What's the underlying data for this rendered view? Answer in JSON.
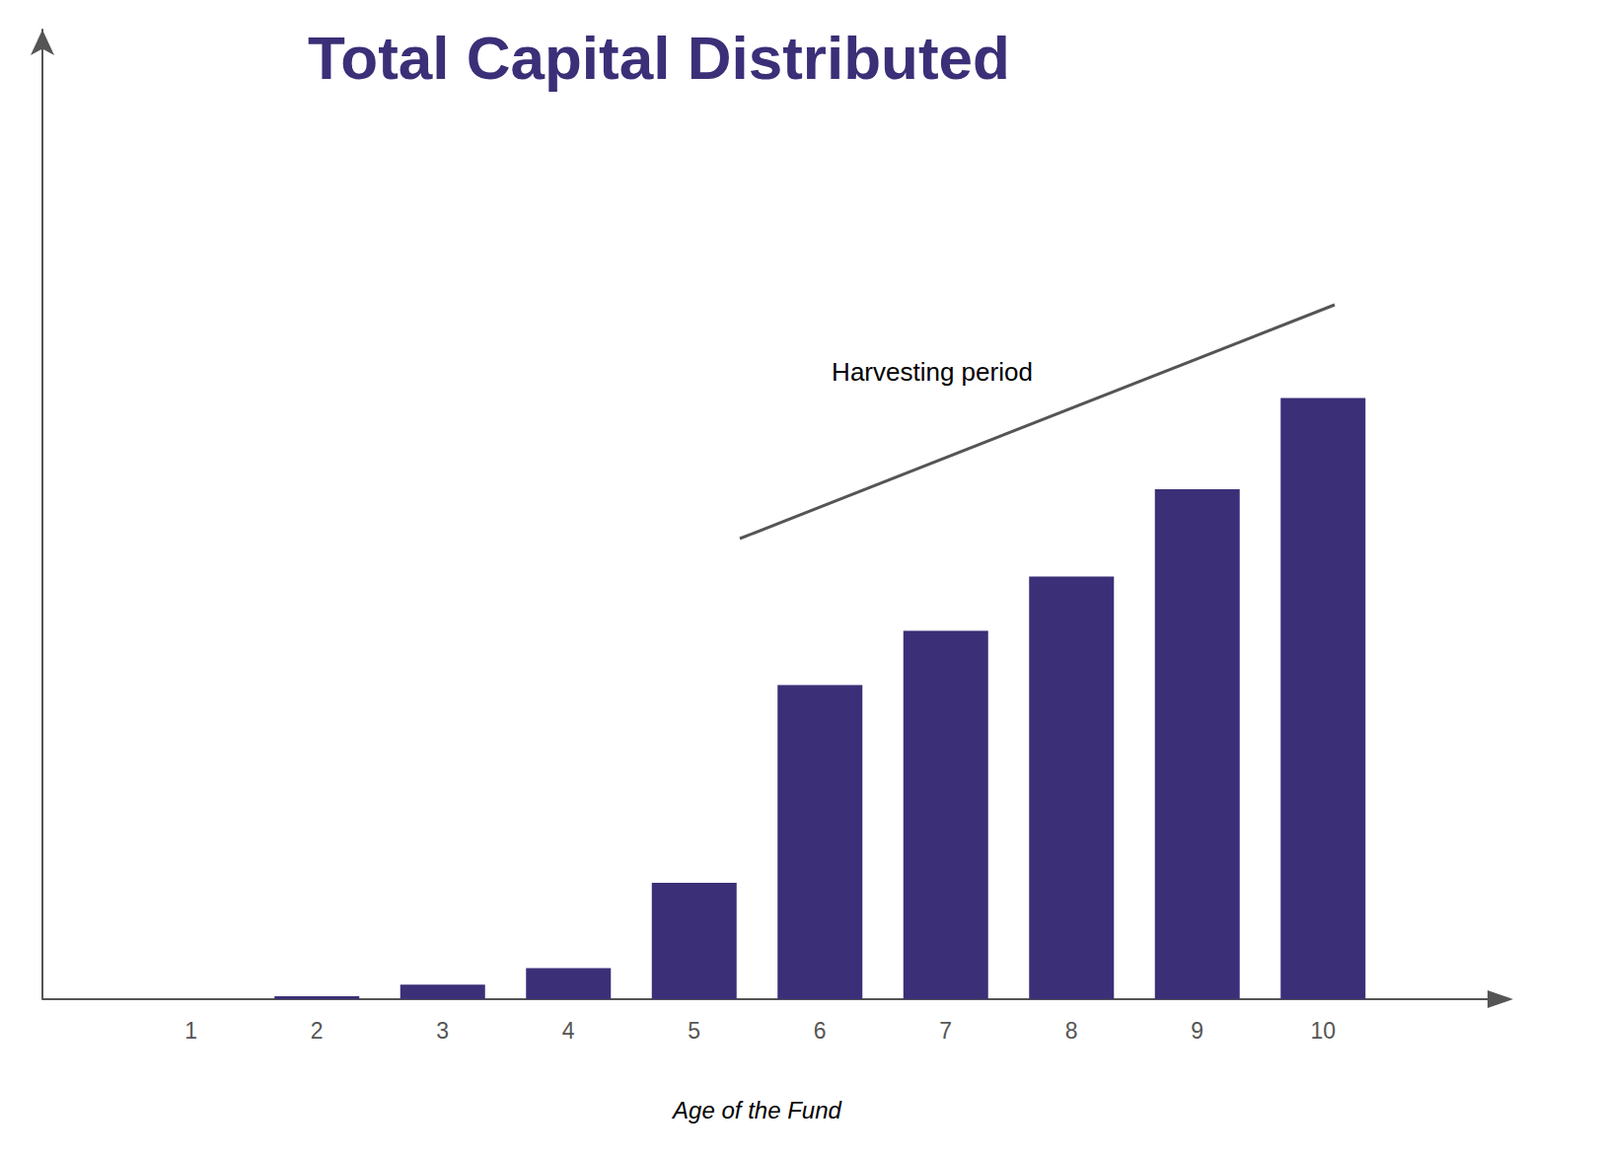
{
  "chart_data": {
    "type": "bar",
    "title": "Total Capital Distributed",
    "x_label": "Age of the Fund",
    "categories": [
      "1",
      "2",
      "3",
      "4",
      "5",
      "6",
      "7",
      "8",
      "9",
      "10"
    ],
    "values": [
      0,
      0.3,
      1.5,
      3.2,
      12,
      32.4,
      38,
      43.6,
      52.6,
      62
    ],
    "color": "#3b2f78",
    "ylim": [
      0,
      100
    ],
    "annotations": [
      {
        "text": "Harvesting period"
      }
    ],
    "grid": false,
    "data_labels": false,
    "tick_labels": "x"
  }
}
